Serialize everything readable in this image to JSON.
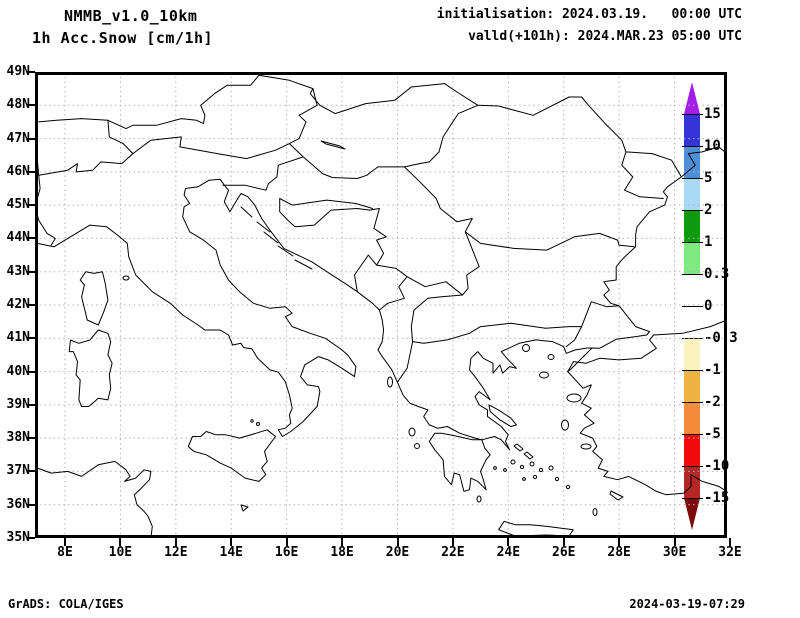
{
  "header": {
    "model_name": "NMMB_v1.0_10km",
    "product_name": "1h Acc.Snow [cm/1h]",
    "init_text": "initialisation: 2024.03.19.   00:00 UTC",
    "valid_text": "valld(+101h): 2024.MAR.23 05:00 UTC"
  },
  "map": {
    "lat_labels": [
      "49N",
      "48N",
      "47N",
      "46N",
      "45N",
      "44N",
      "43N",
      "42N",
      "41N",
      "40N",
      "39N",
      "38N",
      "37N",
      "36N",
      "35N"
    ],
    "lon_labels": [
      "8E",
      "10E",
      "12E",
      "14E",
      "16E",
      "18E",
      "20E",
      "22E",
      "24E",
      "26E",
      "28E",
      "30E",
      "32E"
    ],
    "grid_color": "#b3b3b3",
    "coast_color": "#000000"
  },
  "colorbar": {
    "tick_labels": [
      "15",
      "10",
      "5",
      "2",
      "1",
      "0.3",
      "0",
      "-0.3",
      "-1",
      "-2",
      "-5",
      "-10",
      "-15"
    ],
    "segment_colors_top_to_bottom": [
      "#A21FE8",
      "#3434D9",
      "#4E90D8",
      "#A8DAF8",
      "#0E9A0E",
      "#7FE97F",
      "#FFFFFF",
      "#FFFFFF",
      "#FAF3BD",
      "#EFB440",
      "#F28C3C",
      "#F20B0B",
      "#B52626",
      "#7F0A0A"
    ],
    "units": "cm/1h"
  },
  "footer": {
    "credit": "GrADS: COLA/IGES",
    "timestamp": "2024-03-19-07:29"
  }
}
